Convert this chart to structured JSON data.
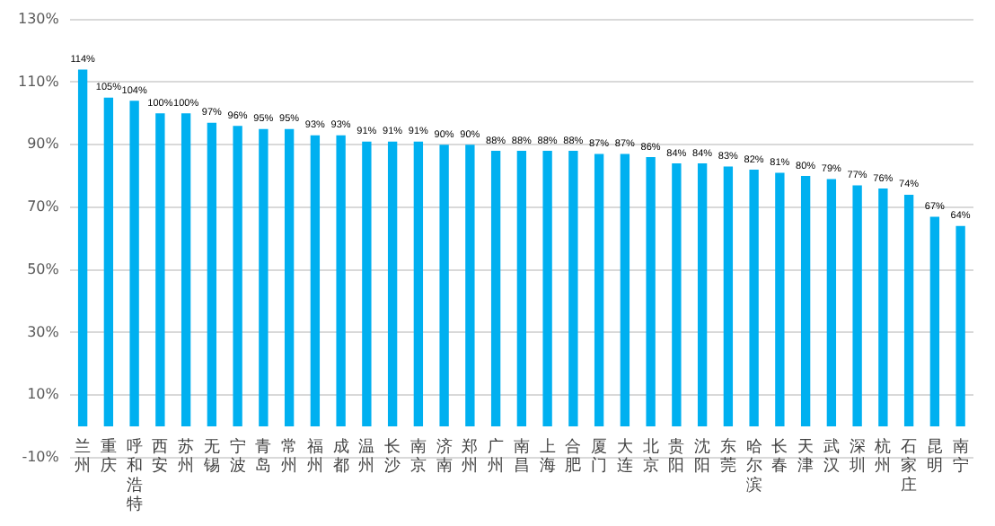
{
  "chart_data": {
    "type": "bar",
    "categories": [
      "兰州",
      "重庆",
      "呼和浩特",
      "西安",
      "苏州",
      "无锡",
      "宁波",
      "青岛",
      "常州",
      "福州",
      "成都",
      "温州",
      "长沙",
      "南京",
      "济南",
      "郑州",
      "广州",
      "南昌",
      "上海",
      "合肥",
      "厦门",
      "大连",
      "北京",
      "贵阳",
      "沈阳",
      "东莞",
      "哈尔滨",
      "长春",
      "天津",
      "武汉",
      "深圳",
      "杭州",
      "石家庄",
      "昆明",
      "南宁"
    ],
    "values": [
      114,
      105,
      104,
      100,
      100,
      97,
      96,
      95,
      95,
      93,
      93,
      91,
      91,
      91,
      90,
      90,
      88,
      88,
      88,
      88,
      87,
      87,
      86,
      84,
      84,
      83,
      82,
      81,
      80,
      79,
      77,
      76,
      74,
      67,
      64
    ],
    "value_labels": [
      "114%",
      "105%",
      "104%",
      "100%",
      "100%",
      "97%",
      "96%",
      "95%",
      "95%",
      "93%",
      "93%",
      "91%",
      "91%",
      "91%",
      "90%",
      "90%",
      "88%",
      "88%",
      "88%",
      "88%",
      "87%",
      "87%",
      "86%",
      "84%",
      "84%",
      "83%",
      "82%",
      "81%",
      "80%",
      "79%",
      "77%",
      "76%",
      "74%",
      "67%",
      "64%"
    ],
    "color": "#00b0f0",
    "ylim": [
      -10,
      130
    ],
    "yticks": [
      {
        "value": -10,
        "label": "-10%"
      },
      {
        "value": 10,
        "label": "10%"
      },
      {
        "value": 30,
        "label": "30%"
      },
      {
        "value": 50,
        "label": "50%"
      },
      {
        "value": 70,
        "label": "70%"
      },
      {
        "value": 90,
        "label": "90%"
      },
      {
        "value": 110,
        "label": "110%"
      },
      {
        "value": 130,
        "label": "130%"
      }
    ],
    "grid": "y",
    "legend": false
  }
}
